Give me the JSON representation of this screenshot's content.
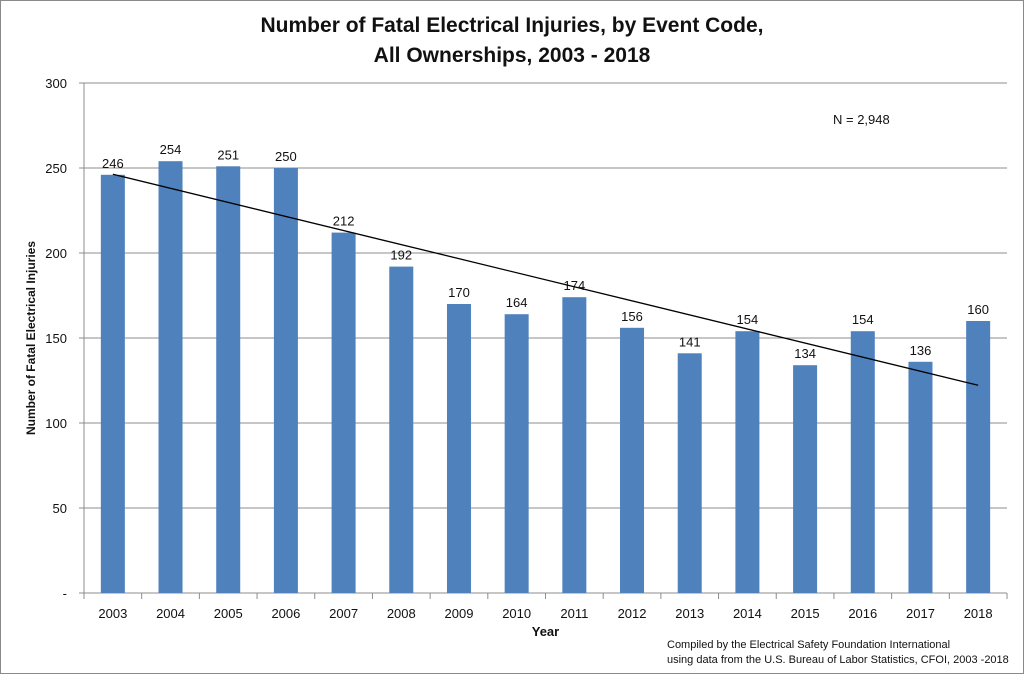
{
  "chart_data": {
    "type": "bar",
    "title_line1": "Number of Fatal Electrical Injuries, by Event Code,",
    "title_line2": "All Ownerships, 2003 - 2018",
    "xlabel": "Year",
    "ylabel": "Number of Fatal Electrical Injuries",
    "ylim": [
      0,
      300
    ],
    "yticks": [
      0,
      50,
      100,
      150,
      200,
      250,
      300
    ],
    "ytick_labels": [
      "-",
      "50",
      "100",
      "150",
      "200",
      "250",
      "300"
    ],
    "grid": true,
    "categories": [
      "2003",
      "2004",
      "2005",
      "2006",
      "2007",
      "2008",
      "2009",
      "2010",
      "2011",
      "2012",
      "2013",
      "2014",
      "2015",
      "2016",
      "2017",
      "2018"
    ],
    "values": [
      246,
      254,
      251,
      250,
      212,
      192,
      170,
      164,
      174,
      156,
      141,
      154,
      134,
      154,
      136,
      160
    ],
    "bar_color": "#4f81bd",
    "trendline": {
      "type": "linear",
      "color": "#000000"
    },
    "annotation": "N = 2,948",
    "source_line1": "Compiled by the Electrical Safety Foundation International",
    "source_line2": "using data from the U.S. Bureau of Labor Statistics, CFOI, 2003 -2018"
  }
}
